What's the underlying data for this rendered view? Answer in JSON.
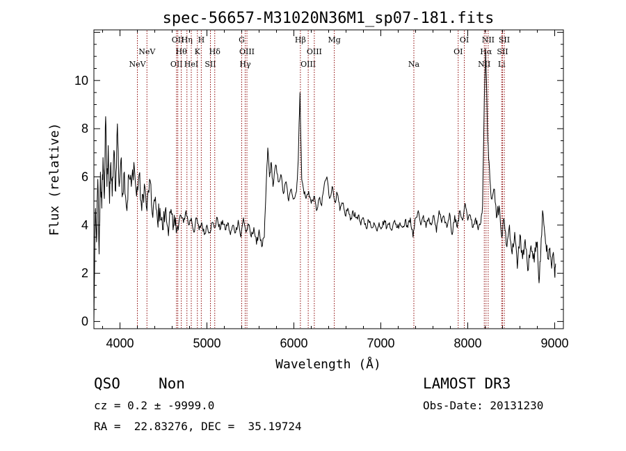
{
  "chart_data": {
    "type": "line",
    "title": "spec-56657-M31020N36M1_sp07-181.fits",
    "xlabel": "Wavelength (Å)",
    "ylabel": "Flux (relative)",
    "xlim": [
      3700,
      9100
    ],
    "ylim": [
      -0.3,
      12.1
    ],
    "xticks": [
      4000,
      5000,
      6000,
      7000,
      8000,
      9000
    ],
    "yticks": [
      0,
      2,
      4,
      6,
      8,
      10
    ],
    "grid": false,
    "series": [
      {
        "name": "spectrum",
        "anchors": [
          [
            3700,
            0
          ],
          [
            3715,
            4.5
          ],
          [
            3730,
            3.3
          ],
          [
            3745,
            5.9
          ],
          [
            3760,
            2.8
          ],
          [
            3775,
            6.2
          ],
          [
            3790,
            4.7
          ],
          [
            3805,
            6.8
          ],
          [
            3820,
            5.1
          ],
          [
            3835,
            8.5
          ],
          [
            3850,
            5.6
          ],
          [
            3865,
            7.3
          ],
          [
            3880,
            4.9
          ],
          [
            3895,
            6.6
          ],
          [
            3910,
            5.2
          ],
          [
            3930,
            7.1
          ],
          [
            3950,
            5.4
          ],
          [
            3970,
            8.2
          ],
          [
            3990,
            5.6
          ],
          [
            4010,
            6.7
          ],
          [
            4030,
            5.3
          ],
          [
            4050,
            6.2
          ],
          [
            4080,
            4.6
          ],
          [
            4100,
            6.1
          ],
          [
            4130,
            5.6
          ],
          [
            4160,
            6.6
          ],
          [
            4190,
            5.2
          ],
          [
            4220,
            6.1
          ],
          [
            4250,
            4.6
          ],
          [
            4280,
            5.7
          ],
          [
            4310,
            4.6
          ],
          [
            4340,
            5.9
          ],
          [
            4370,
            4.5
          ],
          [
            4400,
            5.0
          ],
          [
            4430,
            4.2
          ],
          [
            4460,
            4.7
          ],
          [
            4490,
            3.8
          ],
          [
            4520,
            4.6
          ],
          [
            4550,
            3.9
          ],
          [
            4580,
            4.5
          ],
          [
            4610,
            3.8
          ],
          [
            4640,
            4.3
          ],
          [
            4670,
            3.8
          ],
          [
            4700,
            4.4
          ],
          [
            4730,
            4.1
          ],
          [
            4760,
            4.6
          ],
          [
            4790,
            4.0
          ],
          [
            4820,
            4.3
          ],
          [
            4850,
            3.7
          ],
          [
            4880,
            4.3
          ],
          [
            4910,
            3.8
          ],
          [
            4940,
            4.1
          ],
          [
            4970,
            3.6
          ],
          [
            5000,
            4.0
          ],
          [
            5030,
            3.7
          ],
          [
            5060,
            4.1
          ],
          [
            5090,
            3.9
          ],
          [
            5120,
            4.3
          ],
          [
            5150,
            3.8
          ],
          [
            5180,
            4.2
          ],
          [
            5210,
            3.8
          ],
          [
            5240,
            4.1
          ],
          [
            5270,
            3.6
          ],
          [
            5300,
            4.0
          ],
          [
            5330,
            3.7
          ],
          [
            5360,
            4.2
          ],
          [
            5390,
            3.5
          ],
          [
            5420,
            4.3
          ],
          [
            5450,
            3.7
          ],
          [
            5480,
            4.0
          ],
          [
            5510,
            3.5
          ],
          [
            5540,
            3.9
          ],
          [
            5570,
            3.2
          ],
          [
            5600,
            3.8
          ],
          [
            5630,
            3.1
          ],
          [
            5660,
            3.5
          ],
          [
            5680,
            5.5
          ],
          [
            5700,
            7.2
          ],
          [
            5720,
            6.0
          ],
          [
            5740,
            6.6
          ],
          [
            5760,
            5.6
          ],
          [
            5790,
            6.5
          ],
          [
            5820,
            5.8
          ],
          [
            5850,
            6.1
          ],
          [
            5880,
            5.3
          ],
          [
            5910,
            5.8
          ],
          [
            5940,
            5.0
          ],
          [
            5970,
            5.5
          ],
          [
            6000,
            5.1
          ],
          [
            6030,
            5.4
          ],
          [
            6050,
            6.7
          ],
          [
            6070,
            9.5
          ],
          [
            6090,
            5.9
          ],
          [
            6110,
            5.5
          ],
          [
            6140,
            5.1
          ],
          [
            6170,
            5.4
          ],
          [
            6200,
            4.9
          ],
          [
            6230,
            5.2
          ],
          [
            6260,
            4.6
          ],
          [
            6290,
            5.1
          ],
          [
            6320,
            4.8
          ],
          [
            6350,
            5.7
          ],
          [
            6380,
            6.0
          ],
          [
            6410,
            5.1
          ],
          [
            6440,
            5.6
          ],
          [
            6470,
            5.0
          ],
          [
            6500,
            5.3
          ],
          [
            6530,
            4.6
          ],
          [
            6560,
            4.9
          ],
          [
            6590,
            4.4
          ],
          [
            6620,
            4.7
          ],
          [
            6650,
            4.2
          ],
          [
            6680,
            4.6
          ],
          [
            6710,
            4.3
          ],
          [
            6740,
            4.4
          ],
          [
            6770,
            4.0
          ],
          [
            6800,
            4.3
          ],
          [
            6830,
            3.9
          ],
          [
            6860,
            4.2
          ],
          [
            6890,
            3.9
          ],
          [
            6920,
            4.1
          ],
          [
            6950,
            3.8
          ],
          [
            6980,
            4.1
          ],
          [
            7010,
            3.9
          ],
          [
            7040,
            4.2
          ],
          [
            7070,
            3.9
          ],
          [
            7100,
            4.1
          ],
          [
            7130,
            3.8
          ],
          [
            7160,
            4.2
          ],
          [
            7190,
            3.9
          ],
          [
            7220,
            4.1
          ],
          [
            7250,
            3.9
          ],
          [
            7280,
            4.2
          ],
          [
            7310,
            3.9
          ],
          [
            7340,
            4.3
          ],
          [
            7370,
            3.5
          ],
          [
            7400,
            4.3
          ],
          [
            7430,
            4.6
          ],
          [
            7460,
            4.0
          ],
          [
            7490,
            4.4
          ],
          [
            7520,
            3.9
          ],
          [
            7550,
            4.3
          ],
          [
            7580,
            4.0
          ],
          [
            7610,
            4.4
          ],
          [
            7640,
            3.7
          ],
          [
            7670,
            4.6
          ],
          [
            7700,
            4.1
          ],
          [
            7730,
            4.3
          ],
          [
            7760,
            3.9
          ],
          [
            7790,
            4.5
          ],
          [
            7820,
            3.6
          ],
          [
            7850,
            4.4
          ],
          [
            7880,
            3.9
          ],
          [
            7910,
            4.6
          ],
          [
            7940,
            4.2
          ],
          [
            7970,
            4.9
          ],
          [
            8000,
            4.2
          ],
          [
            8030,
            4.4
          ],
          [
            8060,
            3.9
          ],
          [
            8090,
            4.3
          ],
          [
            8120,
            3.8
          ],
          [
            8150,
            4.1
          ],
          [
            8170,
            4.8
          ],
          [
            8190,
            9.2
          ],
          [
            8205,
            11.2
          ],
          [
            8215,
            10.0
          ],
          [
            8230,
            7.5
          ],
          [
            8250,
            6.3
          ],
          [
            8270,
            5.1
          ],
          [
            8300,
            5.5
          ],
          [
            8330,
            4.3
          ],
          [
            8360,
            4.8
          ],
          [
            8390,
            3.5
          ],
          [
            8420,
            4.2
          ],
          [
            8450,
            3.1
          ],
          [
            8480,
            4.0
          ],
          [
            8510,
            2.8
          ],
          [
            8540,
            3.7
          ],
          [
            8570,
            2.2
          ],
          [
            8600,
            3.6
          ],
          [
            8630,
            2.6
          ],
          [
            8660,
            3.4
          ],
          [
            8690,
            2.1
          ],
          [
            8720,
            3.0
          ],
          [
            8750,
            2.6
          ],
          [
            8780,
            2.9
          ],
          [
            8800,
            3.3
          ],
          [
            8820,
            1.6
          ],
          [
            8840,
            2.9
          ],
          [
            8860,
            4.6
          ],
          [
            8880,
            3.9
          ],
          [
            8900,
            3.2
          ],
          [
            8920,
            2.6
          ],
          [
            8940,
            3.0
          ],
          [
            8960,
            2.4
          ],
          [
            8980,
            2.8
          ],
          [
            9000,
            1.9
          ],
          [
            9010,
            2.4
          ]
        ]
      }
    ],
    "lines": [
      {
        "label": "NeV",
        "x": 4200,
        "row": 2
      },
      {
        "label": "NeV",
        "x": 4310,
        "row": 1
      },
      {
        "label": "OII",
        "x": 4650,
        "row": 2
      },
      {
        "label": "OII",
        "x": 4665,
        "row": 0
      },
      {
        "label": "Hθ",
        "x": 4705,
        "row": 1
      },
      {
        "label": "Hη",
        "x": 4770,
        "row": 0
      },
      {
        "label": "HeI",
        "x": 4820,
        "row": 2
      },
      {
        "label": "K",
        "x": 4890,
        "row": 1
      },
      {
        "label": "H",
        "x": 4935,
        "row": 0
      },
      {
        "label": "SII",
        "x": 5040,
        "row": 2
      },
      {
        "label": "Hδ",
        "x": 5090,
        "row": 1
      },
      {
        "label": "G",
        "x": 5400,
        "row": 0
      },
      {
        "label": "Hγ",
        "x": 5440,
        "row": 2
      },
      {
        "label": "OIII",
        "x": 5460,
        "row": 1
      },
      {
        "label": "Hβ",
        "x": 6075,
        "row": 0
      },
      {
        "label": "OIII",
        "x": 6165,
        "row": 2
      },
      {
        "label": "OIII",
        "x": 6235,
        "row": 1
      },
      {
        "label": "Mg",
        "x": 6465,
        "row": 0
      },
      {
        "label": "Na",
        "x": 7380,
        "row": 2
      },
      {
        "label": "OI",
        "x": 7890,
        "row": 1
      },
      {
        "label": "OI",
        "x": 7960,
        "row": 0
      },
      {
        "label": "NII",
        "x": 8190,
        "row": 2
      },
      {
        "label": "Hα",
        "x": 8210,
        "row": 1
      },
      {
        "label": "NII",
        "x": 8235,
        "row": 0
      },
      {
        "label": "Li",
        "x": 8390,
        "row": 2
      },
      {
        "label": "SII",
        "x": 8400,
        "row": 1
      },
      {
        "label": "SII",
        "x": 8420,
        "row": 0
      }
    ],
    "line_color": "#8b0000"
  },
  "info": {
    "class": "QSO",
    "subclass": "Non",
    "survey": "LAMOST DR3",
    "redshift": "cz = 0.2 ± -9999.0",
    "obsdate": "Obs-Date: 20131230",
    "coords": "RA =  22.83276, DEC =  35.19724"
  }
}
